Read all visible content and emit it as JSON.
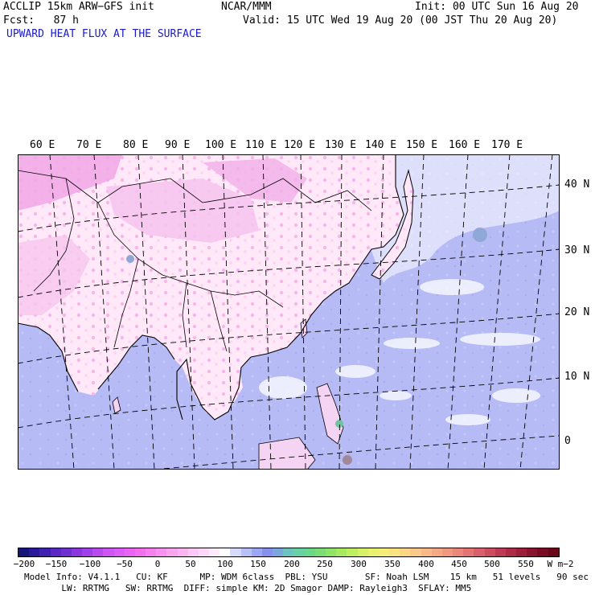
{
  "header": {
    "model": "ACCLIP 15km ARW−GFS init",
    "org": "NCAR/MMM",
    "init": "Init: 00 UTC Sun 16 Aug 20",
    "fcst": "Fcst:   87 h",
    "valid": "Valid: 15 UTC Wed 19 Aug 20 (00 JST Thu 20 Aug 20)",
    "field": "UPWARD HEAT FLUX AT THE SURFACE"
  },
  "map": {
    "lon_labels": [
      "60 E",
      "70 E",
      "80 E",
      "90 E",
      "100 E",
      "110 E",
      "120 E",
      "130 E",
      "140 E",
      "150 E",
      "160 E",
      "170 E"
    ],
    "lat_labels": [
      "40 N",
      "30 N",
      "20 N",
      "10 N",
      "0"
    ],
    "colors": {
      "land_low": "#ffeefa",
      "land_high": "#f8b8ec",
      "ocean": "#b8bcf6",
      "ocean_light": "#d4d6fa",
      "coast": "#000000",
      "grid": "#000000"
    }
  },
  "colorbar": {
    "ticks": [
      "−200",
      "−150",
      "−100",
      "−50",
      "0",
      "50",
      "100",
      "150",
      "200",
      "250",
      "300",
      "350",
      "400",
      "450",
      "500",
      "550"
    ],
    "units": "W m−2",
    "colors": [
      "#16167a",
      "#2a1a9a",
      "#4020b0",
      "#5a28c4",
      "#7030d0",
      "#8a38dc",
      "#a040e6",
      "#b84aee",
      "#cc55f4",
      "#dc5cf6",
      "#ea64f4",
      "#f270f0",
      "#f680ee",
      "#f892ee",
      "#faa4f0",
      "#fbb6f2",
      "#fcc8f6",
      "#fdd8f8",
      "#feeafb",
      "#ffffff",
      "#d6dafb",
      "#b8c0f8",
      "#9ca8f4",
      "#8890ee",
      "#7aa8dc",
      "#6cc4c0",
      "#66d2a4",
      "#6ad88a",
      "#7ade74",
      "#8ee466",
      "#a6ea60",
      "#c0ee62",
      "#d8f068",
      "#eaf070",
      "#f6ec78",
      "#fae280",
      "#fbd684",
      "#fac888",
      "#f8b888",
      "#f4a884",
      "#f09880",
      "#ea867a",
      "#e27472",
      "#d8606a",
      "#cc4c60",
      "#be3a54",
      "#ae2a46",
      "#9c1e38",
      "#8a142c",
      "#7a0c22",
      "#6a061a"
    ]
  },
  "footer": {
    "line1": "Model Info: V4.1.1   CU: KF      MP: WDM 6class  PBL: YSU       SF: Noah LSM    15 km   51 levels   90 sec",
    "line2": "       LW: RRTMG   SW: RRTMG  DIFF: simple KM: 2D Smagor DAMP: Rayleigh3  SFLAY: MM5"
  }
}
